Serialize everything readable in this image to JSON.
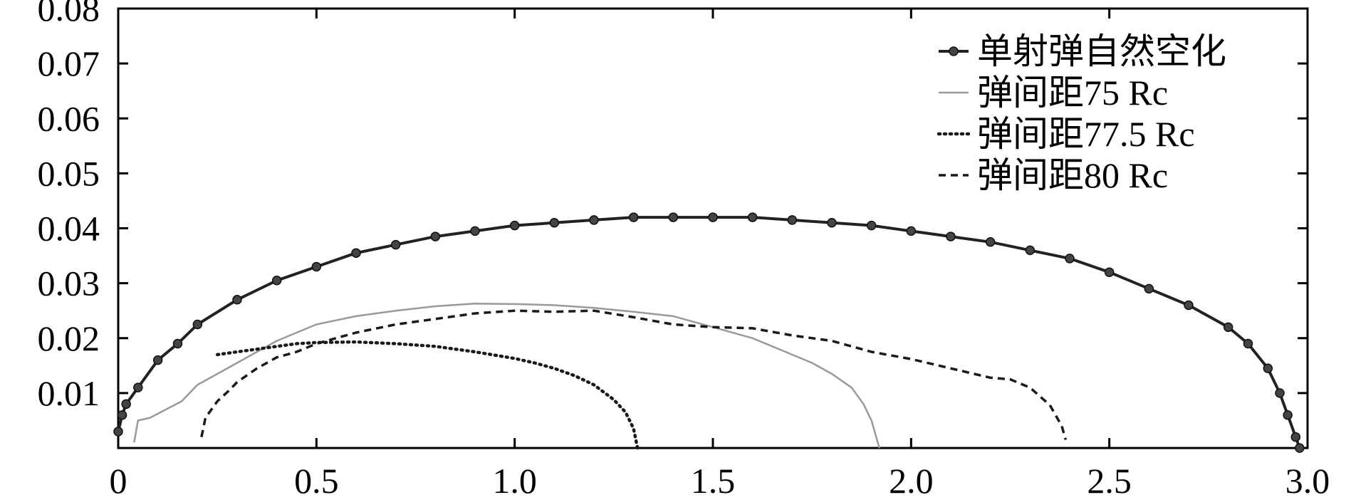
{
  "chart_data": {
    "type": "line",
    "title": "",
    "xlabel": "",
    "ylabel": "",
    "xlim": [
      0,
      3.0
    ],
    "ylim": [
      0,
      0.08
    ],
    "x_ticks": [
      0,
      0.5,
      1.0,
      1.5,
      2.0,
      2.5,
      3.0
    ],
    "x_tick_labels": [
      "0",
      "0.5",
      "1.0",
      "1.5",
      "2.0",
      "2.5",
      "3.0"
    ],
    "y_ticks": [
      0.01,
      0.02,
      0.03,
      0.04,
      0.05,
      0.06,
      0.07,
      0.08
    ],
    "y_tick_labels": [
      "0.01",
      "0.02",
      "0.03",
      "0.04",
      "0.05",
      "0.06",
      "0.07",
      "0.08"
    ],
    "grid": false,
    "legend_position": "top-right",
    "series": [
      {
        "name": "单射弹自然空化",
        "style": "solid-markers",
        "color": "#222222",
        "x": [
          0.0,
          0.01,
          0.02,
          0.05,
          0.1,
          0.15,
          0.2,
          0.3,
          0.4,
          0.5,
          0.6,
          0.7,
          0.8,
          0.9,
          1.0,
          1.1,
          1.2,
          1.3,
          1.4,
          1.5,
          1.6,
          1.7,
          1.8,
          1.9,
          2.0,
          2.1,
          2.2,
          2.3,
          2.4,
          2.5,
          2.6,
          2.7,
          2.8,
          2.85,
          2.9,
          2.93,
          2.95,
          2.97,
          2.98
        ],
        "y": [
          0.003,
          0.006,
          0.008,
          0.011,
          0.016,
          0.019,
          0.0225,
          0.027,
          0.0305,
          0.033,
          0.0355,
          0.037,
          0.0385,
          0.0395,
          0.0405,
          0.041,
          0.0415,
          0.042,
          0.042,
          0.042,
          0.042,
          0.0415,
          0.041,
          0.0405,
          0.0395,
          0.0385,
          0.0375,
          0.036,
          0.0345,
          0.032,
          0.029,
          0.026,
          0.022,
          0.019,
          0.0145,
          0.01,
          0.006,
          0.002,
          0.0
        ]
      },
      {
        "name": "弹间距75 Rc",
        "style": "solid-light",
        "color": "#9a9a9a",
        "x": [
          0.04,
          0.05,
          0.08,
          0.12,
          0.16,
          0.2,
          0.25,
          0.3,
          0.35,
          0.4,
          0.45,
          0.5,
          0.6,
          0.7,
          0.8,
          0.9,
          1.0,
          1.1,
          1.2,
          1.3,
          1.4,
          1.5,
          1.6,
          1.7,
          1.75,
          1.8,
          1.85,
          1.88,
          1.9,
          1.92
        ],
        "y": [
          0.001,
          0.005,
          0.0055,
          0.007,
          0.0085,
          0.0115,
          0.0135,
          0.0155,
          0.0175,
          0.0195,
          0.021,
          0.0225,
          0.024,
          0.025,
          0.0258,
          0.0263,
          0.0262,
          0.026,
          0.0255,
          0.0248,
          0.024,
          0.022,
          0.02,
          0.017,
          0.0155,
          0.0135,
          0.011,
          0.008,
          0.005,
          0.0
        ]
      },
      {
        "name": "弹间距77.5 Rc",
        "style": "dotted",
        "color": "#1a1a1a",
        "x": [
          0.25,
          0.3,
          0.35,
          0.4,
          0.45,
          0.5,
          0.6,
          0.7,
          0.8,
          0.9,
          1.0,
          1.05,
          1.1,
          1.15,
          1.2,
          1.25,
          1.28,
          1.3,
          1.31
        ],
        "y": [
          0.017,
          0.0175,
          0.018,
          0.0185,
          0.019,
          0.0192,
          0.0193,
          0.019,
          0.0185,
          0.0175,
          0.0163,
          0.0155,
          0.0145,
          0.0132,
          0.0115,
          0.0088,
          0.0065,
          0.0035,
          0.0
        ]
      },
      {
        "name": "弹间距80 Rc",
        "style": "dashed",
        "color": "#1a1a1a",
        "x": [
          0.21,
          0.22,
          0.25,
          0.28,
          0.3,
          0.35,
          0.4,
          0.45,
          0.5,
          0.6,
          0.7,
          0.8,
          0.9,
          1.0,
          1.1,
          1.2,
          1.3,
          1.4,
          1.5,
          1.6,
          1.7,
          1.8,
          1.9,
          2.0,
          2.1,
          2.2,
          2.25,
          2.3,
          2.35,
          2.38,
          2.39
        ],
        "y": [
          0.002,
          0.0055,
          0.0085,
          0.0105,
          0.012,
          0.0145,
          0.0165,
          0.0175,
          0.019,
          0.021,
          0.0225,
          0.0235,
          0.0245,
          0.025,
          0.0248,
          0.025,
          0.0238,
          0.0225,
          0.022,
          0.0218,
          0.0205,
          0.0195,
          0.0175,
          0.0162,
          0.0145,
          0.0128,
          0.0125,
          0.011,
          0.0078,
          0.004,
          0.0015
        ]
      }
    ]
  }
}
